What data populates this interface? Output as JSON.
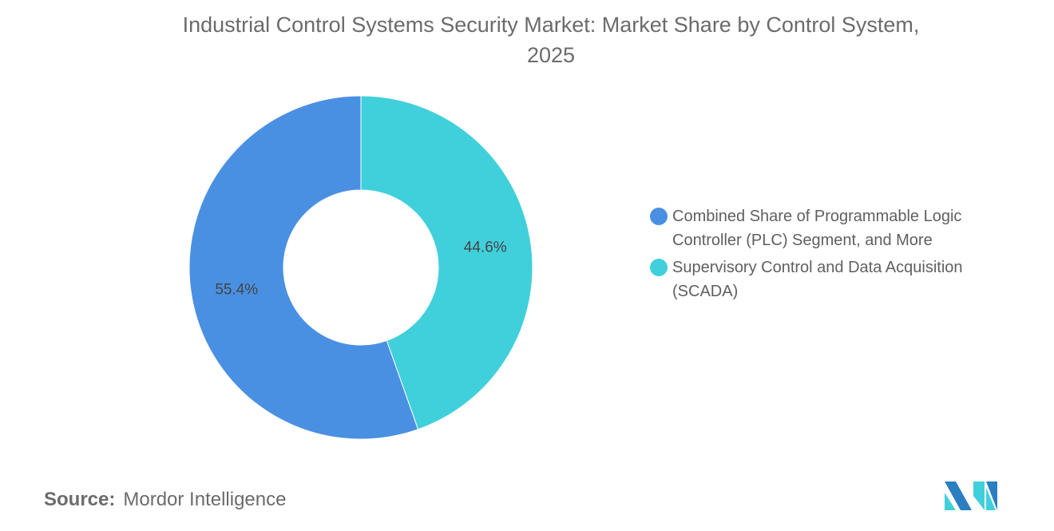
{
  "chart_data": {
    "type": "pie",
    "variant": "donut",
    "title": "Industrial Control Systems Security Market: Market Share by Control System, 2025",
    "title_lines": [
      "Industrial Control Systems Security Market: Market Share by Control System,",
      "2025"
    ],
    "series": [
      {
        "name": "Supervisory Control and Data Acquisition (SCADA)",
        "value": 44.6,
        "label": "44.6%",
        "color": "#40d0db"
      },
      {
        "name": "Combined Share of Programmable Logic Controller (PLC) Segment, and More",
        "value": 55.4,
        "label": "55.4%",
        "color": "#4a90e2"
      }
    ],
    "legend": {
      "placement": "right",
      "entries": [
        {
          "lines": [
            "Combined Share of Programmable Logic",
            "Controller (PLC) Segment, and More"
          ],
          "color": "#4a90e2"
        },
        {
          "lines": [
            "Supervisory Control and Data Acquisition",
            "(SCADA)"
          ],
          "color": "#40d0db"
        }
      ]
    }
  },
  "source": {
    "label": "Source:",
    "value": "Mordor Intelligence"
  },
  "logo": {
    "text": "Mordor Intelligence",
    "colors": [
      "#2a7fc0",
      "#40d0db"
    ]
  }
}
